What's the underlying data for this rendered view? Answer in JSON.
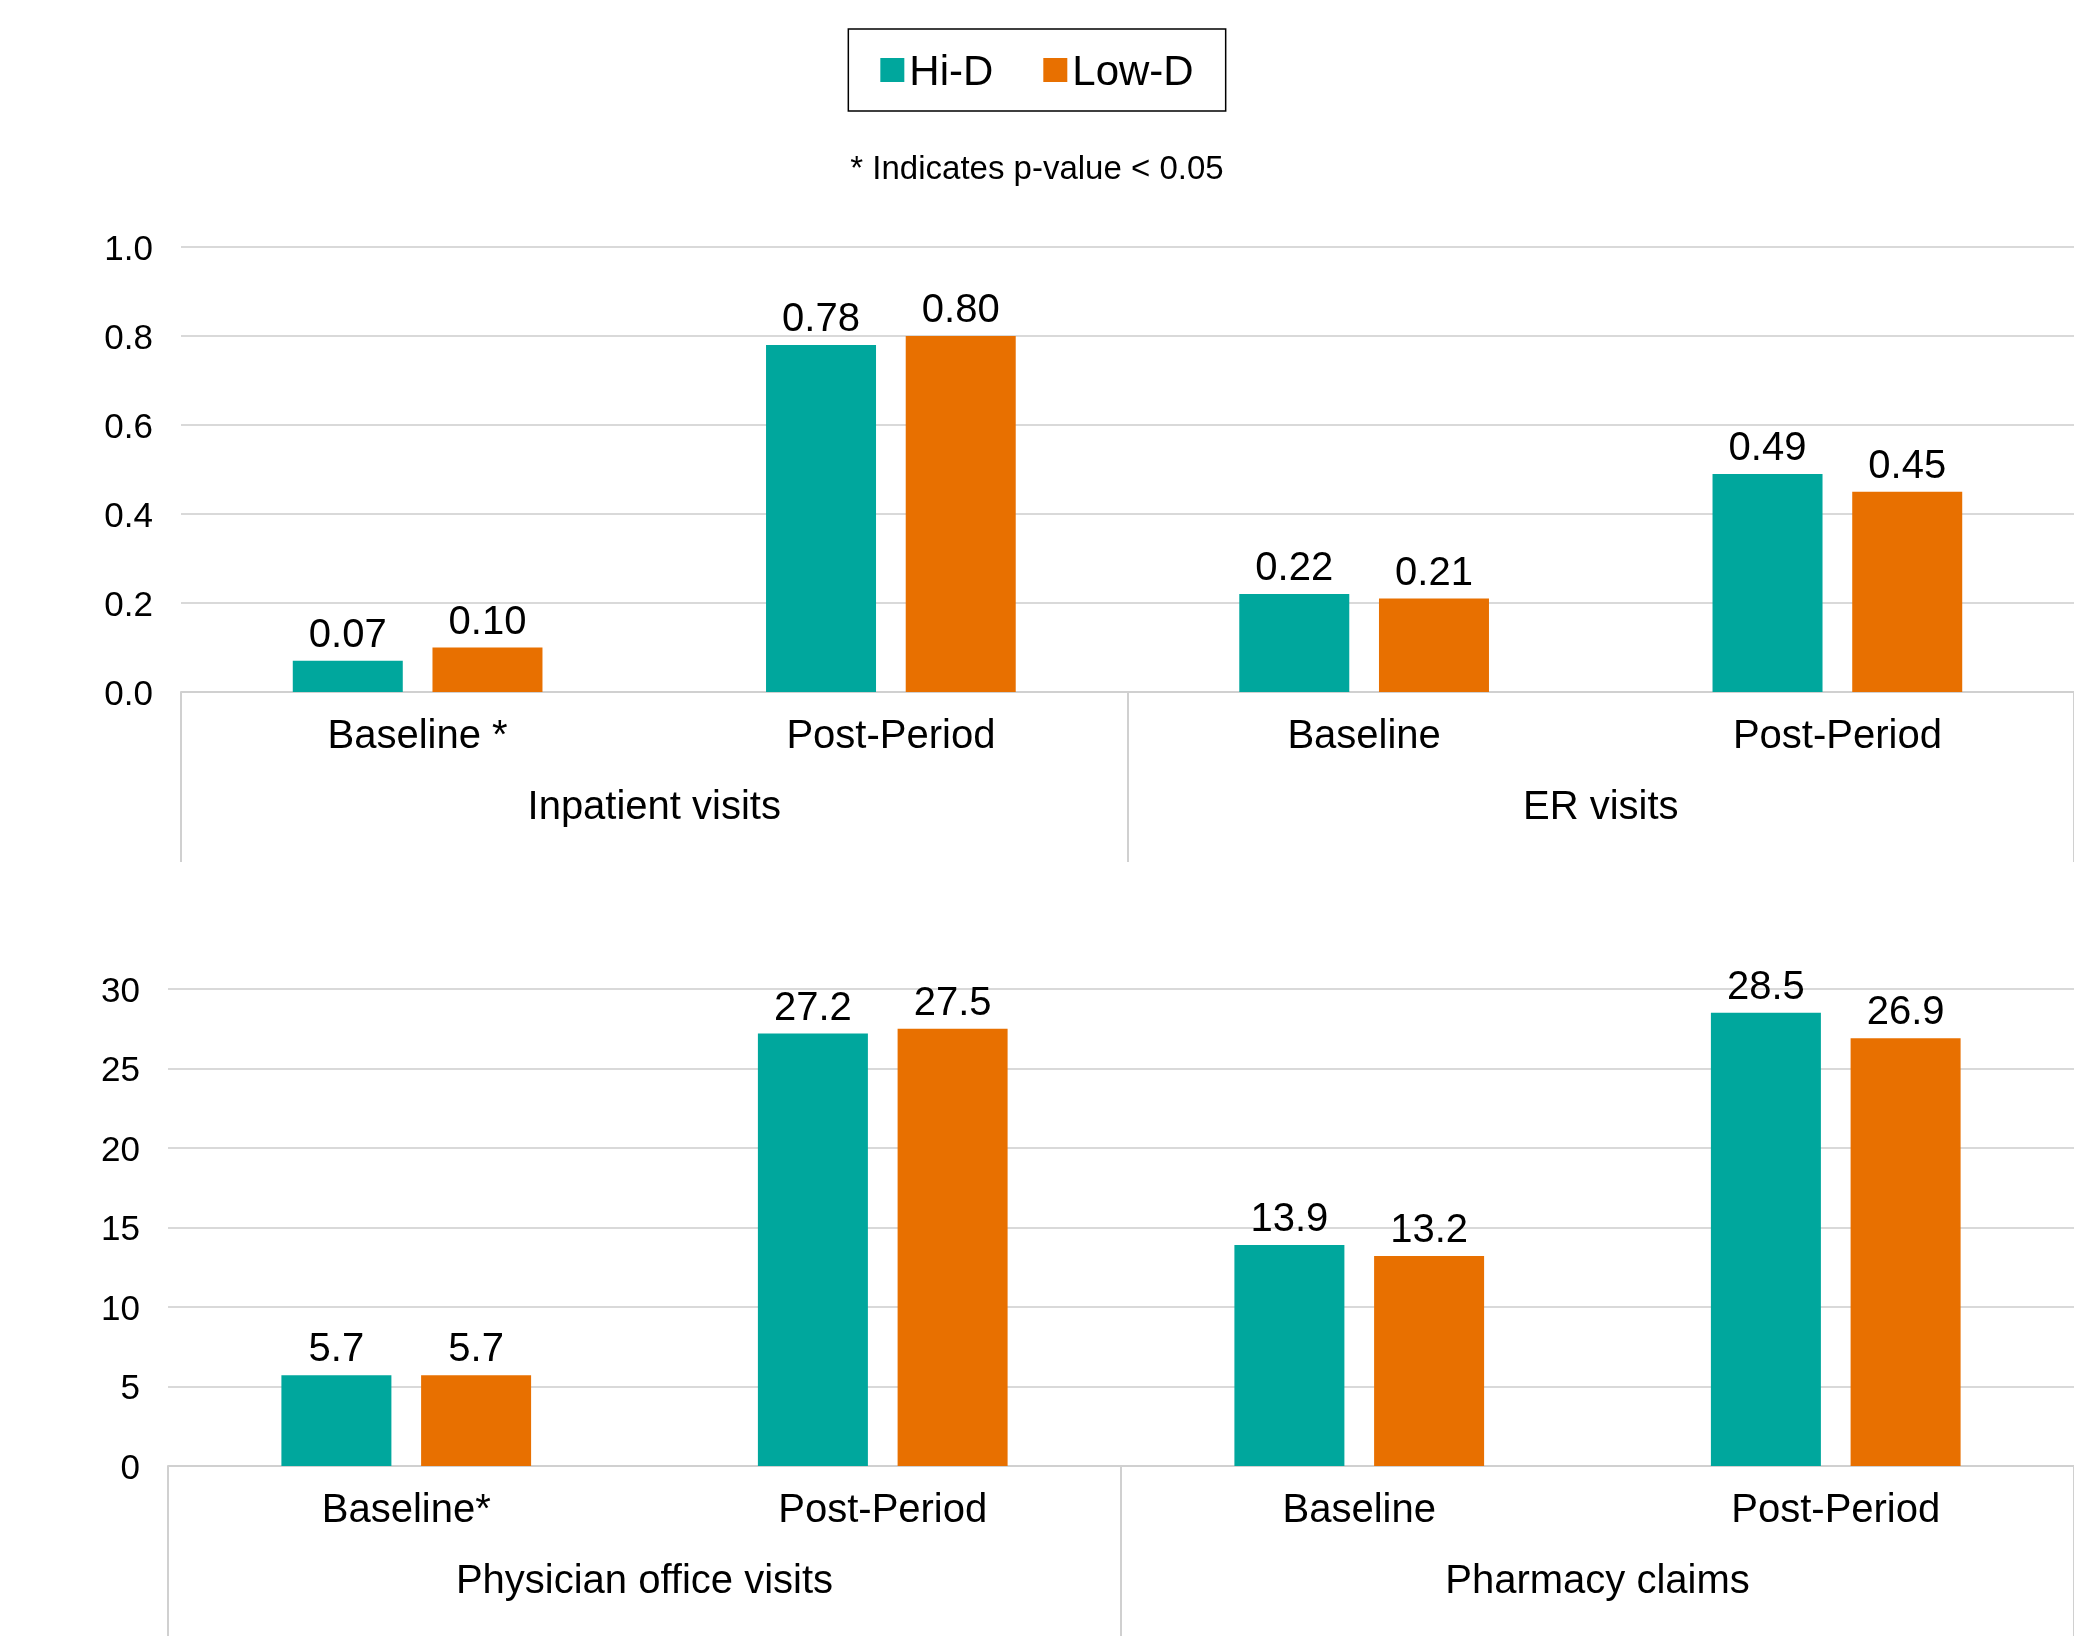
{
  "chart_data": [
    {
      "type": "bar",
      "subtitle": "* Indicates p-value < 0.05",
      "categories": [
        "Baseline *",
        "Post-Period",
        "Baseline",
        "Post-Period"
      ],
      "annotations": [
        "Inpatient visits",
        "ER visits"
      ],
      "series": [
        {
          "name": "Hi-D",
          "color": "#00a79d",
          "values": [
            0.07,
            0.78,
            0.22,
            0.49
          ],
          "value_labels": [
            "0.07",
            "0.78",
            "0.22",
            "0.49"
          ]
        },
        {
          "name": "Low-D",
          "color": "#e87000",
          "values": [
            0.1,
            0.8,
            0.21,
            0.45
          ],
          "value_labels": [
            "0.10",
            "0.80",
            "0.21",
            "0.45"
          ]
        }
      ],
      "ylim": [
        0,
        1
      ],
      "yticks": [
        {
          "value": 0,
          "label": "0.0"
        },
        {
          "value": 0.2,
          "label": "0.2"
        },
        {
          "value": 0.4,
          "label": "0.4"
        },
        {
          "value": 0.6,
          "label": "0.6"
        },
        {
          "value": 0.8,
          "label": "0.8"
        },
        {
          "value": 1,
          "label": "1.0"
        }
      ],
      "grid": "y",
      "legend": "top"
    },
    {
      "type": "bar",
      "categories": [
        "Baseline*",
        "Post-Period",
        "Baseline",
        "Post-Period"
      ],
      "annotations": [
        "Physician office visits",
        "Pharmacy claims"
      ],
      "series": [
        {
          "color": "#00a79d",
          "values": [
            5.7,
            27.2,
            13.9,
            28.5
          ],
          "value_labels": [
            "5.7",
            "27.2",
            "13.9",
            "28.5"
          ]
        },
        {
          "color": "#e87000",
          "values": [
            5.7,
            27.5,
            13.2,
            26.9
          ],
          "value_labels": [
            "5.7",
            "27.5",
            "13.2",
            "26.9"
          ]
        }
      ],
      "ylim": [
        0,
        30
      ],
      "yticks": [
        0,
        5,
        10,
        15,
        20,
        25,
        30
      ],
      "grid": "y",
      "legend": false
    }
  ]
}
